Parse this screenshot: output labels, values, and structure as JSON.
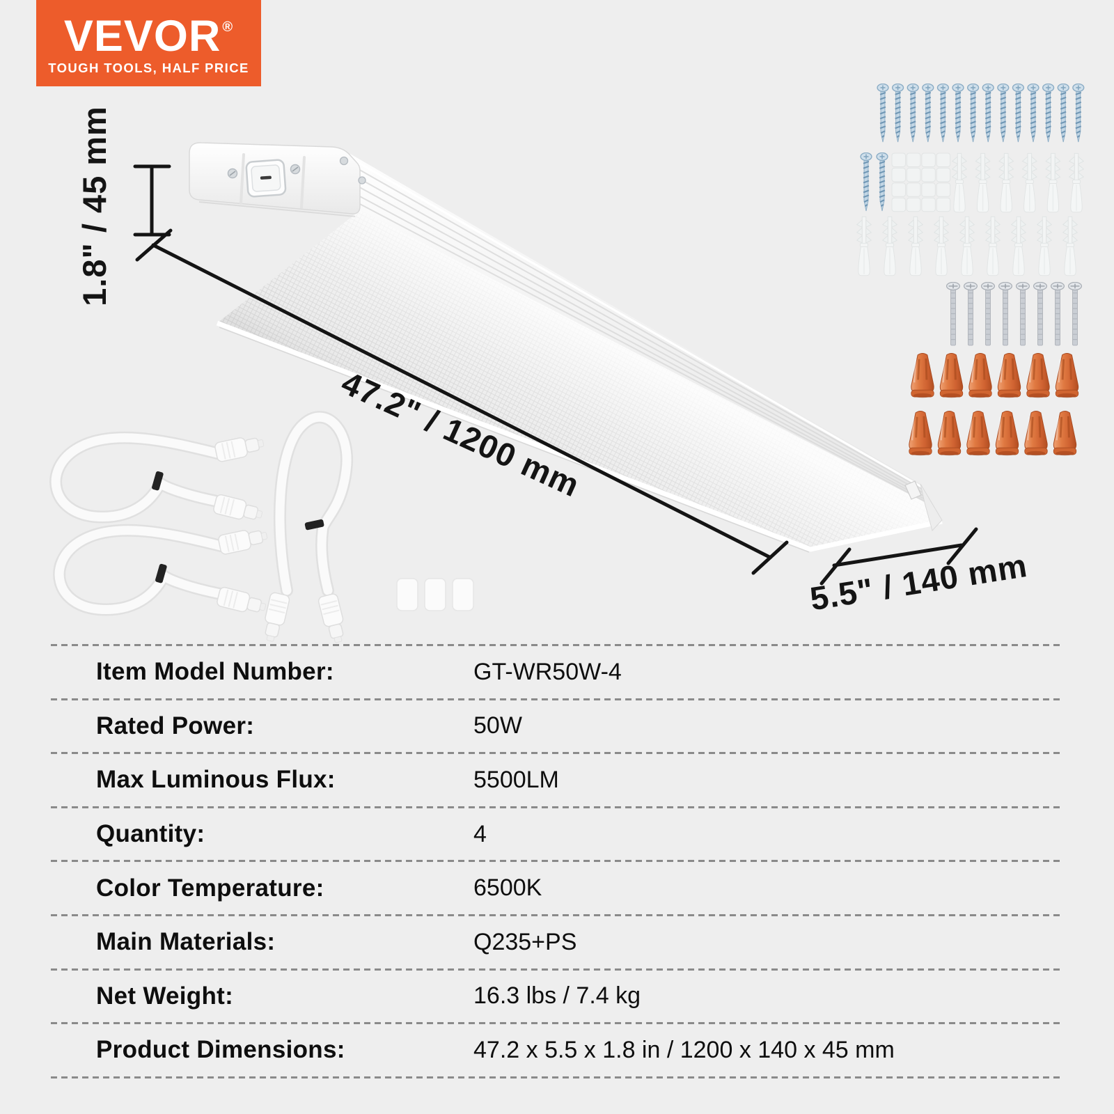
{
  "brand": {
    "logo_text": "VEVOR",
    "registered_mark": "®",
    "tagline": "TOUGH TOOLS, HALF PRICE"
  },
  "annotations": {
    "height": "1.8\" / 45 mm",
    "length": "47.2\" / 1200 mm",
    "width": "5.5\" / 140 mm"
  },
  "hardware_layout": {
    "long_screws_row1": 14,
    "long_screws_row2": 2,
    "adhesive_pads_rows": 4,
    "adhesive_pads_cols": 4,
    "anchors_row1": 6,
    "anchors_row2": 9,
    "machine_screws": 8,
    "wire_nuts_row1": 6,
    "wire_nuts_row2": 6,
    "linking_cables": 3,
    "cable_sleeves": 3
  },
  "colors": {
    "brand_orange": "#ed5c2b",
    "wire_nut_orange": "#d2642f",
    "screw_blue": "#c2d6e5",
    "background": "#eeeeee"
  },
  "spec_table": {
    "rows": [
      {
        "label": "Item Model Number:",
        "value": "GT-WR50W-4"
      },
      {
        "label": "Rated Power:",
        "value": "50W"
      },
      {
        "label": "Max Luminous Flux:",
        "value": "5500LM"
      },
      {
        "label": "Quantity:",
        "value": "4"
      },
      {
        "label": "Color Temperature:",
        "value": "6500K"
      },
      {
        "label": "Main Materials:",
        "value": "Q235+PS"
      },
      {
        "label": "Net Weight:",
        "value": "16.3 lbs / 7.4 kg"
      },
      {
        "label": "Product Dimensions:",
        "value": "47.2 x 5.5 x 1.8 in / 1200 x 140 x 45 mm"
      }
    ]
  }
}
